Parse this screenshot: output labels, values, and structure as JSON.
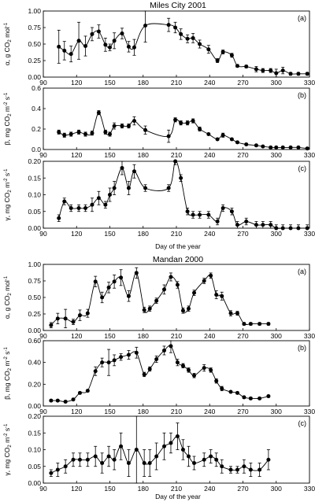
{
  "groups": [
    {
      "title": "Miles City 2001",
      "xlabel": "Day of the year",
      "xticks": [
        90,
        120,
        150,
        180,
        210,
        240,
        270,
        300,
        330
      ],
      "panels": [
        {
          "tag": "(a)",
          "ylabel_parts": [
            "α, g CO",
            "2",
            " mol",
            "-1"
          ],
          "ylim": [
            0,
            1.0
          ],
          "yticks": [
            0.0,
            0.25,
            0.5,
            0.75,
            1.0
          ],
          "ytick_decimals": 2
        },
        {
          "tag": "(b)",
          "ylabel_parts": [
            "β, mg CO",
            "2",
            " m",
            "-2",
            " s",
            "-1"
          ],
          "ylim": [
            0,
            0.6
          ],
          "yticks": [
            0.0,
            0.2,
            0.4,
            0.6
          ],
          "ytick_decimals": 1
        },
        {
          "tag": "(c)",
          "ylabel_parts": [
            "γ, mg CO",
            "2",
            " m",
            "-2",
            " s",
            "-1"
          ],
          "ylim": [
            0,
            0.2
          ],
          "yticks": [
            0.0,
            0.05,
            0.1,
            0.15,
            0.2
          ],
          "ytick_decimals": 2
        }
      ]
    },
    {
      "title": "Mandan 2000",
      "xlabel": "Day of the year",
      "xticks": [
        90,
        120,
        150,
        180,
        210,
        240,
        270,
        300,
        330
      ],
      "panels": [
        {
          "tag": "(a)",
          "ylabel_parts": [
            "α, g CO",
            "2",
            " mol",
            "-1"
          ],
          "ylim": [
            0,
            1.0
          ],
          "yticks": [
            0.0,
            0.25,
            0.5,
            0.75,
            1.0
          ],
          "ytick_decimals": 2
        },
        {
          "tag": "(b)",
          "ylabel_parts": [
            "β, mg CO",
            "2",
            " m",
            "-2",
            " s",
            "-1"
          ],
          "ylim": [
            0,
            0.6
          ],
          "yticks": [
            0.0,
            0.2,
            0.4,
            0.6
          ],
          "ytick_decimals": 2
        },
        {
          "tag": "(c)",
          "ylabel_parts": [
            "γ, mg CO",
            "2",
            " m",
            "-2",
            " s",
            "-1"
          ],
          "ylim": [
            0,
            0.2
          ],
          "yticks": [
            0.0,
            0.05,
            0.1,
            0.15,
            0.2
          ],
          "ytick_decimals": 2
        }
      ]
    }
  ],
  "chart_data": [
    {
      "type": "line",
      "title": "Miles City 2001",
      "panel": "(a)",
      "xlabel": "Day of the year",
      "ylabel": "α, g CO2 mol-1",
      "xlim": [
        90,
        330
      ],
      "ylim": [
        0,
        1.0
      ],
      "x": [
        104,
        109,
        115,
        122,
        128,
        134,
        140,
        146,
        150,
        154,
        161,
        167,
        172,
        182,
        203,
        209,
        214,
        220,
        225,
        231,
        239,
        247,
        252,
        260,
        265,
        273,
        282,
        288,
        295,
        300,
        306,
        313,
        320,
        328
      ],
      "y": [
        0.46,
        0.4,
        0.35,
        0.55,
        0.47,
        0.65,
        0.69,
        0.49,
        0.45,
        0.55,
        0.66,
        0.46,
        0.45,
        0.78,
        0.79,
        0.75,
        0.65,
        0.58,
        0.59,
        0.5,
        0.42,
        0.25,
        0.38,
        0.33,
        0.17,
        0.16,
        0.12,
        0.1,
        0.1,
        0.06,
        0.1,
        0.05,
        0.05,
        0.05
      ],
      "err": [
        0.25,
        0.14,
        0.12,
        0.28,
        0.15,
        0.1,
        0.1,
        0.1,
        0.05,
        0.12,
        0.08,
        0.08,
        0.12,
        0.25,
        0.1,
        0.08,
        0.08,
        0.06,
        0.07,
        0.06,
        0.06,
        0.03,
        0.03,
        0.03,
        0.02,
        0.02,
        0.04,
        0.03,
        0.03,
        0.06,
        0.05,
        0.02,
        0.02,
        0.02
      ]
    },
    {
      "type": "line",
      "title": "Miles City 2001",
      "panel": "(b)",
      "xlabel": "Day of the year",
      "ylabel": "β, mg CO2 m-2 s-1",
      "xlim": [
        90,
        330
      ],
      "ylim": [
        0,
        0.6
      ],
      "x": [
        104,
        109,
        115,
        122,
        128,
        134,
        140,
        146,
        150,
        154,
        161,
        167,
        172,
        182,
        203,
        209,
        214,
        220,
        225,
        231,
        239,
        247,
        252,
        260,
        265,
        273,
        282,
        288,
        295,
        300,
        306,
        313,
        320,
        328
      ],
      "y": [
        0.17,
        0.14,
        0.15,
        0.17,
        0.15,
        0.16,
        0.36,
        0.17,
        0.15,
        0.23,
        0.23,
        0.23,
        0.28,
        0.19,
        0.13,
        0.29,
        0.26,
        0.26,
        0.28,
        0.2,
        0.15,
        0.1,
        0.14,
        0.1,
        0.07,
        0.05,
        0.04,
        0.03,
        0.02,
        0.02,
        0.02,
        0.02,
        0.02,
        0.01
      ],
      "err": [
        0.02,
        0.02,
        0.02,
        0.02,
        0.02,
        0.02,
        0.02,
        0.02,
        0.02,
        0.03,
        0.02,
        0.02,
        0.04,
        0.04,
        0.06,
        0.02,
        0.02,
        0.02,
        0.02,
        0.02,
        0.01,
        0.01,
        0.02,
        0.01,
        0.01,
        0.01,
        0.01,
        0.01,
        0.01,
        0.01,
        0.01,
        0.01,
        0.01,
        0.01
      ]
    },
    {
      "type": "line",
      "title": "Miles City 2001",
      "panel": "(c)",
      "xlabel": "Day of the year",
      "ylabel": "γ, mg CO2 m-2 s-1",
      "xlim": [
        90,
        330
      ],
      "ylim": [
        0,
        0.2
      ],
      "x": [
        104,
        109,
        115,
        122,
        128,
        134,
        140,
        146,
        150,
        154,
        161,
        167,
        172,
        182,
        203,
        209,
        214,
        220,
        225,
        231,
        239,
        247,
        252,
        260,
        265,
        273,
        282,
        288,
        295,
        300,
        306,
        313,
        320,
        328
      ],
      "y": [
        0.03,
        0.08,
        0.06,
        0.06,
        0.06,
        0.07,
        0.09,
        0.07,
        0.1,
        0.12,
        0.18,
        0.12,
        0.17,
        0.12,
        0.12,
        0.2,
        0.15,
        0.05,
        0.04,
        0.04,
        0.04,
        0.02,
        0.06,
        0.05,
        0.01,
        0.02,
        0.01,
        0.01,
        0.01,
        0.0,
        0.0,
        0.0,
        0.0,
        0.0
      ],
      "err": [
        0.01,
        0.01,
        0.01,
        0.01,
        0.01,
        0.02,
        0.02,
        0.01,
        0.02,
        0.02,
        0.02,
        0.02,
        0.02,
        0.01,
        0.01,
        0.01,
        0.01,
        0.01,
        0.01,
        0.01,
        0.01,
        0.01,
        0.01,
        0.01,
        0.01,
        0.01,
        0.01,
        0.01,
        0.01,
        0.01,
        0.01,
        0.01,
        0.01,
        0.01
      ]
    },
    {
      "type": "line",
      "title": "Mandan 2000",
      "panel": "(a)",
      "xlabel": "Day of the year",
      "ylabel": "α, g CO2 mol-1",
      "xlim": [
        90,
        330
      ],
      "ylim": [
        0,
        1.0
      ],
      "x": [
        97,
        103,
        110,
        117,
        123,
        130,
        137,
        143,
        149,
        154,
        160,
        167,
        174,
        181,
        186,
        192,
        199,
        205,
        211,
        216,
        221,
        226,
        235,
        241,
        246,
        251,
        259,
        265,
        271,
        277,
        285,
        293
      ],
      "y": [
        0.08,
        0.18,
        0.18,
        0.13,
        0.23,
        0.26,
        0.74,
        0.5,
        0.65,
        0.74,
        0.8,
        0.52,
        0.87,
        0.31,
        0.33,
        0.45,
        0.62,
        0.81,
        0.69,
        0.3,
        0.33,
        0.57,
        0.75,
        0.83,
        0.54,
        0.52,
        0.26,
        0.26,
        0.1,
        0.1,
        0.1,
        0.1
      ],
      "err": [
        0.04,
        0.08,
        0.14,
        0.04,
        0.08,
        0.06,
        0.08,
        0.08,
        0.08,
        0.1,
        0.12,
        0.08,
        0.08,
        0.04,
        0.04,
        0.04,
        0.07,
        0.06,
        0.05,
        0.04,
        0.04,
        0.04,
        0.04,
        0.04,
        0.06,
        0.06,
        0.04,
        0.03,
        0.02,
        0.02,
        0.02,
        0.02
      ]
    },
    {
      "type": "line",
      "title": "Mandan 2000",
      "panel": "(b)",
      "xlabel": "Day of the year",
      "ylabel": "β, mg CO2 m-2 s-1",
      "xlim": [
        90,
        330
      ],
      "ylim": [
        0,
        0.6
      ],
      "x": [
        97,
        103,
        110,
        117,
        123,
        130,
        137,
        143,
        149,
        154,
        160,
        167,
        174,
        181,
        186,
        192,
        199,
        205,
        211,
        216,
        221,
        226,
        235,
        241,
        246,
        251,
        259,
        265,
        271,
        277,
        285,
        293
      ],
      "y": [
        0.05,
        0.05,
        0.04,
        0.06,
        0.12,
        0.14,
        0.32,
        0.4,
        0.4,
        0.42,
        0.45,
        0.47,
        0.49,
        0.29,
        0.34,
        0.43,
        0.51,
        0.55,
        0.4,
        0.37,
        0.33,
        0.28,
        0.35,
        0.33,
        0.23,
        0.16,
        0.13,
        0.12,
        0.08,
        0.07,
        0.07,
        0.09
      ],
      "err": [
        0.01,
        0.01,
        0.01,
        0.01,
        0.01,
        0.01,
        0.04,
        0.04,
        0.12,
        0.05,
        0.03,
        0.04,
        0.05,
        0.02,
        0.02,
        0.03,
        0.04,
        0.06,
        0.03,
        0.02,
        0.02,
        0.02,
        0.03,
        0.02,
        0.02,
        0.02,
        0.01,
        0.01,
        0.01,
        0.01,
        0.01,
        0.01
      ]
    },
    {
      "type": "line",
      "title": "Mandan 2000",
      "panel": "(c)",
      "xlabel": "Day of the year",
      "ylabel": "γ, mg CO2 m-2 s-1",
      "xlim": [
        90,
        330
      ],
      "ylim": [
        0,
        0.2
      ],
      "x": [
        97,
        103,
        110,
        117,
        123,
        130,
        137,
        143,
        149,
        154,
        160,
        167,
        174,
        181,
        186,
        192,
        199,
        205,
        211,
        216,
        221,
        226,
        235,
        241,
        246,
        251,
        259,
        265,
        271,
        277,
        285,
        293
      ],
      "y": [
        0.03,
        0.04,
        0.05,
        0.07,
        0.07,
        0.07,
        0.08,
        0.06,
        0.08,
        0.07,
        0.11,
        0.06,
        0.1,
        0.06,
        0.06,
        0.08,
        0.11,
        0.12,
        0.14,
        0.1,
        0.08,
        0.06,
        0.07,
        0.08,
        0.07,
        0.05,
        0.04,
        0.04,
        0.05,
        0.04,
        0.04,
        0.07
      ],
      "err": [
        0.01,
        0.02,
        0.02,
        0.02,
        0.02,
        0.02,
        0.03,
        0.03,
        0.03,
        0.03,
        0.04,
        0.04,
        0.1,
        0.04,
        0.04,
        0.04,
        0.04,
        0.03,
        0.04,
        0.03,
        0.03,
        0.02,
        0.02,
        0.02,
        0.02,
        0.02,
        0.01,
        0.01,
        0.02,
        0.02,
        0.02,
        0.03
      ]
    }
  ]
}
